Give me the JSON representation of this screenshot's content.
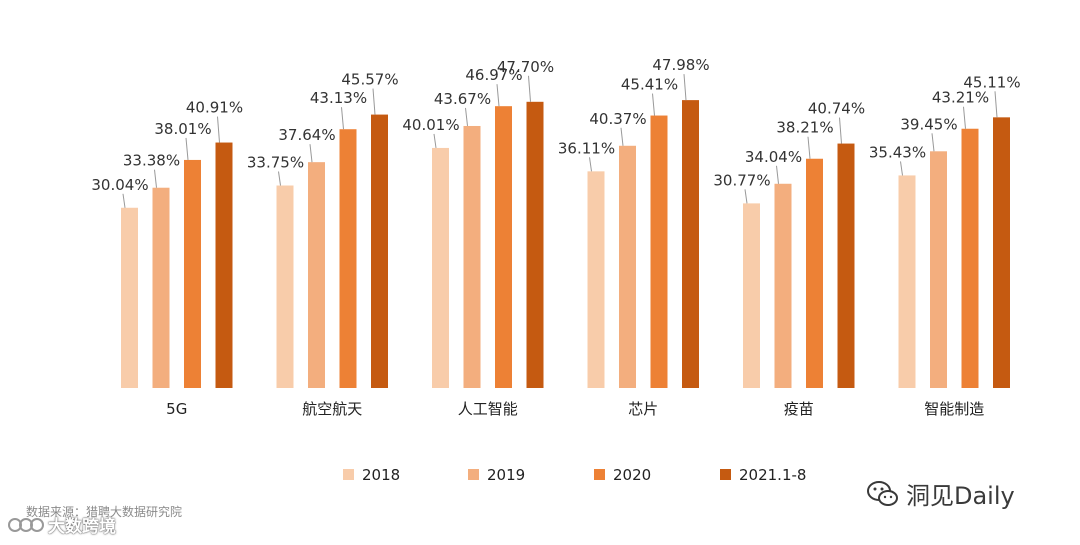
{
  "chart_data": {
    "type": "bar",
    "categories": [
      "5G",
      "航空航天",
      "人工智能",
      "芯片",
      "疫苗",
      "智能制造"
    ],
    "series": [
      {
        "name": "2018",
        "color": "#f8ccaa",
        "values": [
          30.04,
          33.75,
          40.01,
          36.11,
          30.77,
          35.43
        ]
      },
      {
        "name": "2019",
        "color": "#f3ae7e",
        "values": [
          33.38,
          37.64,
          43.67,
          40.37,
          34.04,
          39.45
        ]
      },
      {
        "name": "2020",
        "color": "#ed8135",
        "values": [
          38.01,
          43.13,
          46.97,
          45.41,
          38.21,
          43.21
        ]
      },
      {
        "name": "2021.1-8",
        "color": "#c55a11",
        "values": [
          40.91,
          45.57,
          47.7,
          47.98,
          40.74,
          45.11
        ]
      }
    ],
    "labels": [
      [
        "30.04%",
        "33.38%",
        "38.01%",
        "40.91%"
      ],
      [
        "33.75%",
        "37.64%",
        "43.13%",
        "45.57%"
      ],
      [
        "40.01%",
        "43.67%",
        "46.97%",
        "47.70%"
      ],
      [
        "36.11%",
        "40.37%",
        "45.41%",
        "47.98%"
      ],
      [
        "30.77%",
        "34.04%",
        "38.21%",
        "40.74%"
      ],
      [
        "35.43%",
        "39.45%",
        "43.21%",
        "45.11%"
      ]
    ],
    "ylim": [
      0,
      50
    ],
    "grid": false,
    "legend_position": "bottom"
  },
  "source": "数据来源：猎聘大数据研究院",
  "watermark_left": "大数跨境",
  "watermark_right": "洞见Daily"
}
